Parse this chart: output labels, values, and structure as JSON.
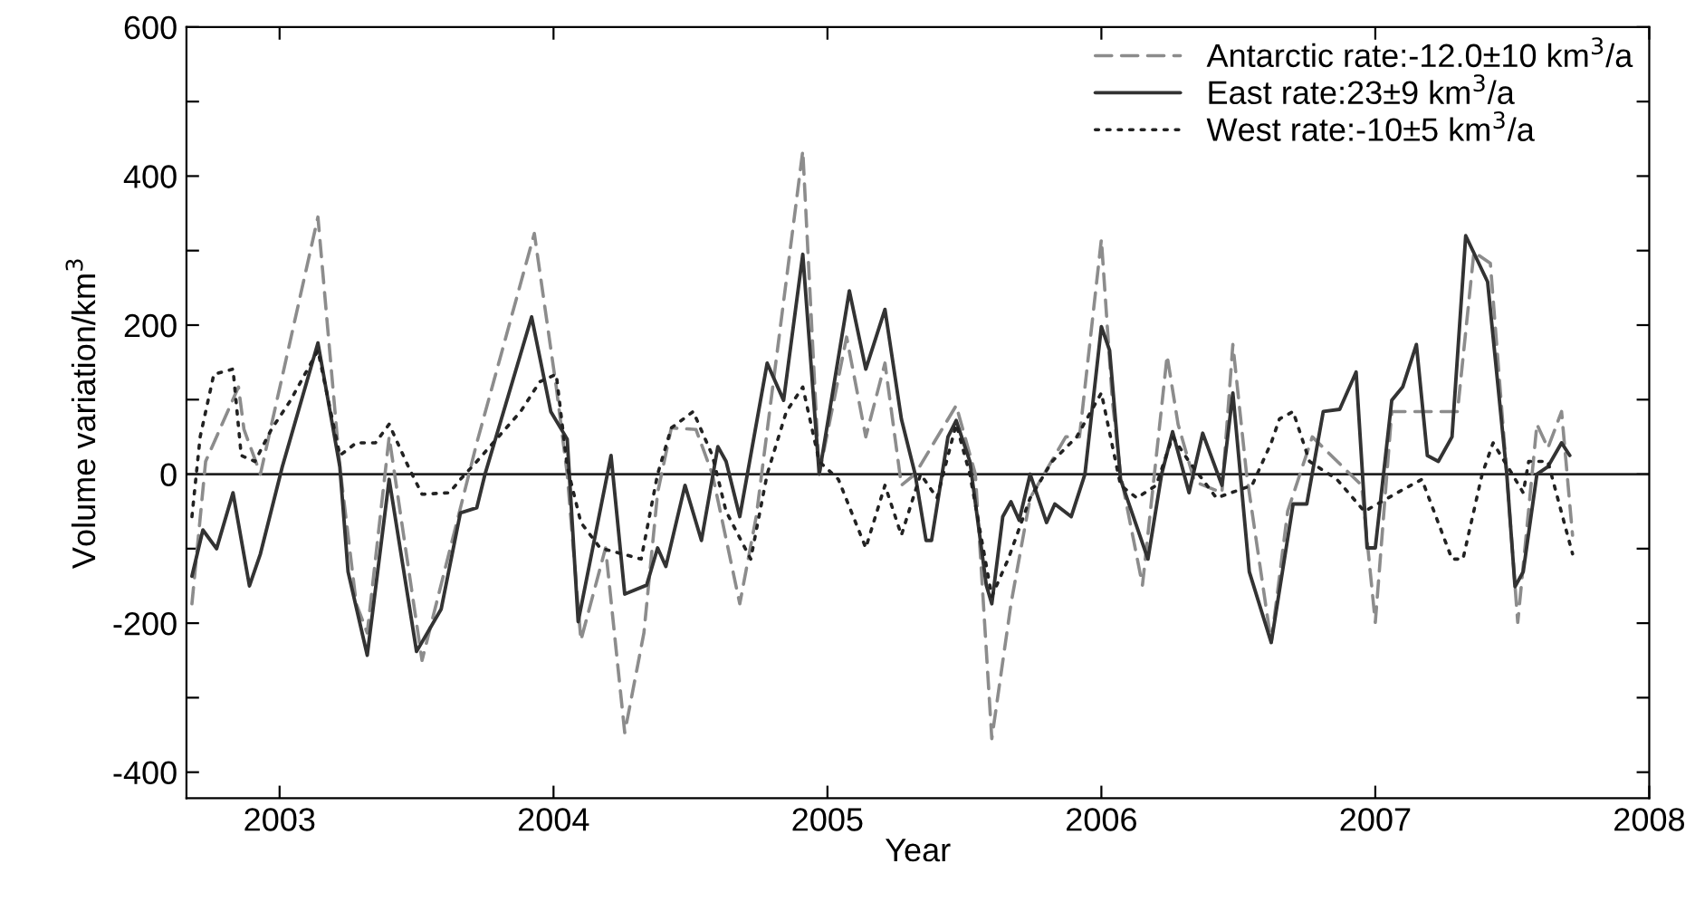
{
  "chart_data": {
    "type": "line",
    "xlabel": "Year",
    "ylabel": "Volume variation/km$^{3}$",
    "xlim": [
      2002.66,
      2008.0
    ],
    "ylim": [
      -435,
      600
    ],
    "xticks": [
      2003,
      2004,
      2005,
      2006,
      2007,
      2008
    ],
    "yticks": [
      -400,
      {
        "value": -300,
        "label": null
      },
      -200,
      {
        "value": -100,
        "label": null
      },
      0,
      {
        "value": 100,
        "label": null
      },
      200,
      {
        "value": 300,
        "label": null
      },
      400,
      {
        "value": 500,
        "label": null
      },
      600
    ],
    "grid": false,
    "legend": "top right",
    "marker": "none",
    "ref_lines": [
      {
        "axis": "y",
        "value": 0,
        "color": "#222222",
        "line_style": "solid"
      }
    ],
    "series": [
      {
        "name": "Antarctic rate:-12.0±10 km$^{3}$/a",
        "color": "#8c8c8c",
        "line_style": "dashed",
        "x": [
          2002.68,
          2002.73,
          2002.85,
          2002.87,
          2002.93,
          2003.14,
          2003.22,
          2003.28,
          2003.32,
          2003.4,
          2003.52,
          2003.72,
          2003.93,
          2004.01,
          2004.05,
          2004.1,
          2004.19,
          2004.26,
          2004.33,
          2004.38,
          2004.43,
          2004.52,
          2004.58,
          2004.68,
          2004.74,
          2004.91,
          2004.97,
          2005.07,
          2005.14,
          2005.21,
          2005.27,
          2005.32,
          2005.47,
          2005.54,
          2005.6,
          2005.67,
          2005.74,
          2005.87,
          2005.92,
          2006.0,
          2006.04,
          2006.07,
          2006.15,
          2006.24,
          2006.28,
          2006.34,
          2006.44,
          2006.48,
          2006.53,
          2006.62,
          2006.68,
          2006.77,
          2006.95,
          2007.0,
          2007.06,
          2007.3,
          2007.36,
          2007.42,
          2007.48,
          2007.52,
          2007.59,
          2007.63,
          2007.68,
          2007.72
        ],
        "values": [
          -174,
          17,
          117,
          60,
          0,
          345,
          10,
          -174,
          -213,
          50,
          -250,
          42,
          323,
          117,
          0,
          -223,
          -99,
          -347,
          -213,
          -25,
          62,
          60,
          0,
          -174,
          -57,
          434,
          0,
          184,
          50,
          149,
          -15,
          0,
          92,
          0,
          -355,
          -174,
          -32,
          50,
          50,
          315,
          99,
          0,
          -149,
          159,
          67,
          -10,
          -25,
          174,
          0,
          -226,
          -50,
          50,
          -15,
          -199,
          84,
          84,
          298,
          283,
          0,
          -199,
          67,
          35,
          84,
          -82
        ]
      },
      {
        "name": "East rate:23±9 km$^{3}$/a",
        "color": "#333333",
        "line_style": "solid",
        "x": [
          2002.68,
          2002.72,
          2002.77,
          2002.83,
          2002.89,
          2002.93,
          2003.01,
          2003.14,
          2003.22,
          2003.25,
          2003.32,
          2003.4,
          2003.5,
          2003.59,
          2003.66,
          2003.72,
          2003.75,
          2003.92,
          2003.99,
          2004.05,
          2004.09,
          2004.21,
          2004.26,
          2004.34,
          2004.38,
          2004.41,
          2004.48,
          2004.54,
          2004.6,
          2004.63,
          2004.68,
          2004.78,
          2004.84,
          2004.91,
          2004.97,
          2005.08,
          2005.14,
          2005.21,
          2005.27,
          2005.32,
          2005.36,
          2005.38,
          2005.44,
          2005.47,
          2005.52,
          2005.58,
          2005.6,
          2005.64,
          2005.67,
          2005.7,
          2005.74,
          2005.8,
          2005.83,
          2005.89,
          2005.94,
          2006.0,
          2006.03,
          2006.07,
          2006.17,
          2006.22,
          2006.26,
          2006.32,
          2006.37,
          2006.44,
          2006.48,
          2006.54,
          2006.62,
          2006.7,
          2006.75,
          2006.81,
          2006.87,
          2006.93,
          2006.97,
          2007.0,
          2007.06,
          2007.1,
          2007.15,
          2007.19,
          2007.23,
          2007.28,
          2007.33,
          2007.41,
          2007.48,
          2007.51,
          2007.54,
          2007.59,
          2007.63,
          2007.68,
          2007.71
        ],
        "values": [
          -137,
          -75,
          -100,
          -25,
          -150,
          -107,
          10,
          176,
          10,
          -131,
          -243,
          -7,
          -238,
          -181,
          -52,
          -45,
          0,
          211,
          84,
          47,
          -198,
          25,
          -161,
          -149,
          -99,
          -124,
          -15,
          -89,
          37,
          17,
          -57,
          149,
          99,
          295,
          0,
          246,
          141,
          221,
          74,
          0,
          -89,
          -89,
          50,
          72,
          17,
          -149,
          -174,
          -57,
          -37,
          -62,
          0,
          -65,
          -40,
          -57,
          0,
          198,
          166,
          -7,
          -114,
          0,
          57,
          -25,
          55,
          -15,
          109,
          -131,
          -226,
          -40,
          -40,
          84,
          87,
          137,
          -99,
          -99,
          99,
          117,
          174,
          25,
          17,
          50,
          320,
          258,
          0,
          -151,
          -131,
          0,
          10,
          42,
          25
        ]
      },
      {
        "name": "West rate:-10±5 km$^{3}$/a",
        "color": "#222222",
        "line_style": "dotted",
        "x": [
          2002.68,
          2002.71,
          2002.76,
          2002.83,
          2002.86,
          2002.91,
          2002.97,
          2003.04,
          2003.14,
          2003.22,
          2003.28,
          2003.35,
          2003.4,
          2003.47,
          2003.52,
          2003.62,
          2003.66,
          2003.72,
          2003.88,
          2003.95,
          2004.01,
          2004.05,
          2004.1,
          2004.17,
          2004.32,
          2004.38,
          2004.43,
          2004.51,
          2004.58,
          2004.63,
          2004.72,
          2004.78,
          2004.85,
          2004.91,
          2004.97,
          2005.04,
          2005.14,
          2005.21,
          2005.27,
          2005.34,
          2005.4,
          2005.47,
          2005.52,
          2005.6,
          2005.66,
          2005.74,
          2005.82,
          2005.91,
          2006.0,
          2006.07,
          2006.13,
          2006.2,
          2006.26,
          2006.32,
          2006.42,
          2006.55,
          2006.62,
          2006.65,
          2006.7,
          2006.76,
          2006.86,
          2006.96,
          2007.08,
          2007.17,
          2007.28,
          2007.32,
          2007.39,
          2007.43,
          2007.5,
          2007.54,
          2007.56,
          2007.63,
          2007.72
        ],
        "values": [
          -57,
          50,
          134,
          141,
          25,
          17,
          60,
          99,
          166,
          25,
          42,
          42,
          67,
          10,
          -27,
          -25,
          -7,
          17,
          84,
          124,
          134,
          10,
          -65,
          -99,
          -114,
          0,
          62,
          84,
          25,
          -50,
          -114,
          0,
          84,
          117,
          17,
          -7,
          -99,
          -15,
          -82,
          0,
          -32,
          67,
          0,
          -164,
          -114,
          -32,
          17,
          50,
          109,
          -15,
          -32,
          -15,
          50,
          17,
          -32,
          -15,
          42,
          74,
          84,
          17,
          -7,
          -50,
          -25,
          -7,
          -114,
          -114,
          0,
          42,
          0,
          -25,
          17,
          17,
          -107
        ]
      }
    ]
  }
}
